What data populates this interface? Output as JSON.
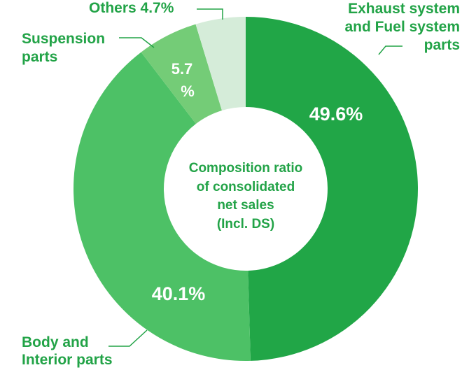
{
  "chart_data": {
    "type": "pie",
    "title": "Composition ratio of consolidated net sales (Incl. DS)",
    "center_lines": [
      "Composition ratio",
      "of consolidated",
      "net sales",
      "(Incl. DS)"
    ],
    "slices": [
      {
        "category_lines": [
          "Exhaust system",
          "and Fuel system",
          "parts"
        ],
        "value": 49.6,
        "label": "49.6%",
        "color": "#21a647"
      },
      {
        "category_lines": [
          "Body and",
          "Interior parts"
        ],
        "value": 40.1,
        "label": "40.1%",
        "color": "#4dc166"
      },
      {
        "category_lines": [
          "Suspension",
          "parts"
        ],
        "value": 5.7,
        "label_lines": [
          "5.7",
          "%"
        ],
        "color": "#74cc77"
      },
      {
        "category_lines": [
          "Others 4.7%"
        ],
        "value": 4.7,
        "label": "",
        "color": "#d5ecd9"
      }
    ],
    "accent_color": "#22a347"
  }
}
